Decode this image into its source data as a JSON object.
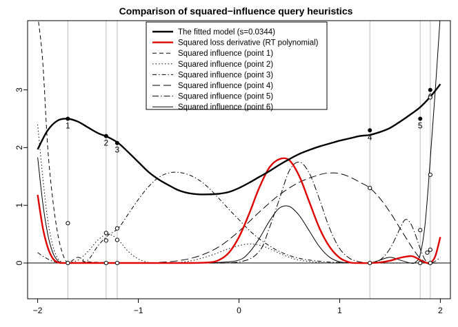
{
  "chart_data": {
    "type": "line",
    "title": "Comparison of squared−influence query heuristics",
    "xlabel": "",
    "ylabel": "",
    "xlim": [
      -2.1,
      2.1
    ],
    "ylim": [
      -0.62,
      4.2
    ],
    "xticks": [
      -2,
      -1,
      0,
      1,
      2
    ],
    "xtick_labels": [
      "−2",
      "−1",
      "0",
      "1",
      "2"
    ],
    "yticks": [
      0,
      1,
      2,
      3
    ],
    "ytick_labels": [
      "0",
      "1",
      "2",
      "3"
    ],
    "legend_position": "top-center",
    "reference_lines": {
      "horizontal_y": 0,
      "vertical_x": [
        -1.7,
        -1.32,
        -1.21,
        1.3,
        1.8,
        1.9
      ]
    },
    "series": [
      {
        "name": "The fitted model (s=0.0344)",
        "color": "#000000",
        "dash": "solid",
        "width": 2.4,
        "x": [
          -2.0,
          -1.9,
          -1.8,
          -1.7,
          -1.6,
          -1.5,
          -1.4,
          -1.3,
          -1.2,
          -1.1,
          -1.0,
          -0.9,
          -0.8,
          -0.7,
          -0.6,
          -0.5,
          -0.4,
          -0.3,
          -0.2,
          -0.1,
          0.0,
          0.1,
          0.2,
          0.3,
          0.4,
          0.5,
          0.6,
          0.7,
          0.8,
          0.9,
          1.0,
          1.1,
          1.2,
          1.3,
          1.4,
          1.5,
          1.6,
          1.7,
          1.8,
          1.9,
          2.0
        ],
        "y": [
          1.97,
          2.3,
          2.47,
          2.5,
          2.45,
          2.35,
          2.25,
          2.18,
          2.08,
          1.92,
          1.75,
          1.58,
          1.45,
          1.35,
          1.26,
          1.21,
          1.19,
          1.19,
          1.2,
          1.23,
          1.3,
          1.39,
          1.49,
          1.59,
          1.7,
          1.8,
          1.89,
          1.96,
          2.02,
          2.07,
          2.12,
          2.16,
          2.2,
          2.22,
          2.27,
          2.34,
          2.45,
          2.57,
          2.7,
          2.88,
          3.1
        ]
      },
      {
        "name": "Squared loss derivative (RT polynomial)",
        "color": "#e00000",
        "dash": "solid",
        "width": 2.4,
        "x": [
          -2.0,
          -1.95,
          -1.9,
          -1.85,
          -1.8,
          -1.75,
          -1.7,
          -1.5,
          -1.0,
          -0.5,
          -0.3,
          -0.2,
          -0.1,
          0.0,
          0.1,
          0.2,
          0.3,
          0.4,
          0.5,
          0.6,
          0.7,
          0.8,
          0.9,
          1.0,
          1.1,
          1.2,
          1.3,
          1.4,
          1.5,
          1.6,
          1.7,
          1.75,
          1.8,
          1.85,
          1.9,
          1.95,
          2.0
        ],
        "y": [
          1.18,
          0.62,
          0.27,
          0.08,
          0.01,
          0.0,
          0.0,
          0.0,
          0.0,
          0.0,
          0.01,
          0.05,
          0.18,
          0.45,
          0.85,
          1.3,
          1.65,
          1.8,
          1.78,
          1.5,
          1.05,
          0.6,
          0.28,
          0.09,
          0.01,
          0.0,
          0.0,
          0.01,
          0.04,
          0.09,
          0.12,
          0.1,
          0.05,
          0.01,
          0.0,
          0.12,
          0.45
        ]
      },
      {
        "name": "Squared influence (point 1)",
        "color": "#000000",
        "dash": "6,4",
        "width": 1,
        "x": [
          -2.0,
          -1.95,
          -1.9,
          -1.85,
          -1.8,
          -1.75,
          -1.7,
          -1.65,
          -1.6,
          -1.55,
          -1.5,
          -1.0,
          0.0,
          1.0,
          2.0
        ],
        "y": [
          4.3,
          3.5,
          2.0,
          1.1,
          0.5,
          0.15,
          0.0,
          0.05,
          0.1,
          0.06,
          0.02,
          0.0,
          0.0,
          0.0,
          0.0
        ]
      },
      {
        "name": "Squared influence (point 2)",
        "color": "#000000",
        "dash": "1.5,3",
        "width": 1,
        "x": [
          -2.0,
          -1.95,
          -1.9,
          -1.85,
          -1.8,
          -1.75,
          -1.7,
          -1.6,
          -1.5,
          -1.4,
          -1.3,
          -1.2,
          -1.1,
          -1.0,
          -0.9,
          -0.8,
          -0.7,
          -0.5,
          -0.3,
          -0.1,
          0.0,
          0.1,
          0.2,
          0.3,
          0.4,
          0.5,
          0.6,
          0.8,
          1.0,
          2.0
        ],
        "y": [
          2.4,
          1.5,
          0.75,
          0.3,
          0.08,
          0.01,
          0.0,
          0.05,
          0.2,
          0.4,
          0.5,
          0.4,
          0.2,
          0.07,
          0.01,
          0.0,
          0.0,
          0.03,
          0.12,
          0.25,
          0.3,
          0.33,
          0.31,
          0.25,
          0.17,
          0.1,
          0.05,
          0.01,
          0.0,
          0.0
        ]
      },
      {
        "name": "Squared influence (point 3)",
        "color": "#000000",
        "dash": "6,3,1.5,3",
        "width": 1,
        "x": [
          -2.0,
          -1.95,
          -1.9,
          -1.85,
          -1.8,
          -1.75,
          -1.7,
          -1.6,
          -1.5,
          -1.4,
          -1.3,
          -1.2,
          -1.1,
          -1.0,
          -0.9,
          -0.8,
          -0.7,
          -0.6,
          -0.5,
          -0.4,
          -0.3,
          -0.2,
          -0.1,
          0.0,
          0.1,
          0.2,
          0.3,
          0.4,
          0.5,
          0.6,
          0.7,
          0.8,
          0.9,
          1.0,
          1.2,
          1.4,
          1.6,
          2.0
        ],
        "y": [
          0.18,
          0.12,
          0.07,
          0.03,
          0.01,
          0.0,
          0.0,
          0.0,
          0.05,
          0.3,
          0.48,
          0.6,
          0.85,
          1.1,
          1.32,
          1.48,
          1.56,
          1.57,
          1.53,
          1.44,
          1.3,
          1.12,
          0.93,
          0.75,
          0.57,
          0.42,
          0.3,
          0.2,
          0.13,
          0.08,
          0.05,
          0.03,
          0.015,
          0.01,
          0.0,
          0.0,
          0.0,
          0.0
        ]
      },
      {
        "name": "Squared influence (point 4)",
        "color": "#000000",
        "dash": "11,5",
        "width": 1,
        "x": [
          -2.0,
          -1.5,
          -1.0,
          -0.8,
          -0.6,
          -0.4,
          -0.2,
          0.0,
          0.2,
          0.4,
          0.6,
          0.8,
          0.9,
          1.0,
          1.1,
          1.2,
          1.3,
          1.4,
          1.5,
          1.6,
          1.7,
          1.75,
          1.8,
          1.85,
          1.9,
          2.0
        ],
        "y": [
          0.0,
          0.0,
          0.0,
          0.01,
          0.04,
          0.12,
          0.28,
          0.55,
          0.88,
          1.18,
          1.4,
          1.53,
          1.56,
          1.55,
          1.49,
          1.4,
          1.3,
          1.12,
          0.88,
          0.6,
          0.32,
          0.19,
          0.08,
          0.02,
          0.0,
          0.0
        ]
      },
      {
        "name": "Squared influence (point 5)",
        "color": "#000000",
        "dash": "9,3,1.5,3",
        "width": 1,
        "x": [
          -2.0,
          -1.0,
          -0.5,
          0.0,
          0.2,
          0.3,
          0.4,
          0.5,
          0.6,
          0.7,
          0.8,
          0.9,
          1.0,
          1.1,
          1.2,
          1.3,
          1.4,
          1.5,
          1.6,
          1.65,
          1.7,
          1.75,
          1.8,
          1.85,
          1.9,
          1.95,
          2.0
        ],
        "y": [
          0.0,
          0.0,
          0.0,
          0.02,
          0.2,
          0.6,
          1.1,
          1.6,
          1.75,
          1.55,
          1.1,
          0.6,
          0.25,
          0.08,
          0.02,
          0.0,
          0.05,
          0.25,
          0.6,
          0.75,
          0.7,
          0.5,
          0.25,
          0.05,
          0.0,
          0.03,
          0.1
        ]
      },
      {
        "name": "Squared influence (point 6)",
        "color": "#000000",
        "dash": "solid",
        "width": 1,
        "x": [
          -2.0,
          -1.95,
          -1.9,
          -1.85,
          -1.8,
          -1.75,
          -1.7,
          -1.5,
          -1.0,
          -0.5,
          -0.2,
          0.0,
          0.1,
          0.2,
          0.3,
          0.4,
          0.5,
          0.6,
          0.7,
          0.8,
          0.9,
          1.0,
          1.1,
          1.2,
          1.3,
          1.4,
          1.5,
          1.6,
          1.7,
          1.75,
          1.8,
          1.85,
          1.9,
          1.95,
          2.0
        ],
        "y": [
          1.83,
          1.05,
          0.5,
          0.18,
          0.04,
          0.0,
          0.0,
          0.0,
          0.0,
          0.0,
          0.01,
          0.05,
          0.18,
          0.42,
          0.72,
          0.95,
          0.98,
          0.82,
          0.55,
          0.28,
          0.1,
          0.02,
          0.0,
          0.0,
          0.0,
          0.05,
          0.1,
          0.05,
          0.0,
          0.01,
          0.15,
          0.7,
          1.8,
          3.0,
          4.3
        ]
      }
    ],
    "data_points": {
      "x": [
        -1.7,
        -1.32,
        -1.21,
        1.3,
        1.8,
        1.9
      ],
      "y": [
        2.5,
        2.2,
        2.08,
        2.3,
        2.5,
        3.0
      ],
      "labels": [
        "1",
        "2",
        "3",
        "4",
        "5",
        "6"
      ]
    },
    "influence_markers": {
      "x": [
        -1.7,
        -1.32,
        -1.32,
        -1.21,
        -1.21,
        1.3,
        1.8,
        1.87,
        1.9,
        1.9,
        1.9
      ],
      "y": [
        0.69,
        0.52,
        0.39,
        0.6,
        0.4,
        1.3,
        0.57,
        0.18,
        1.53,
        2.87,
        0.23
      ]
    }
  }
}
